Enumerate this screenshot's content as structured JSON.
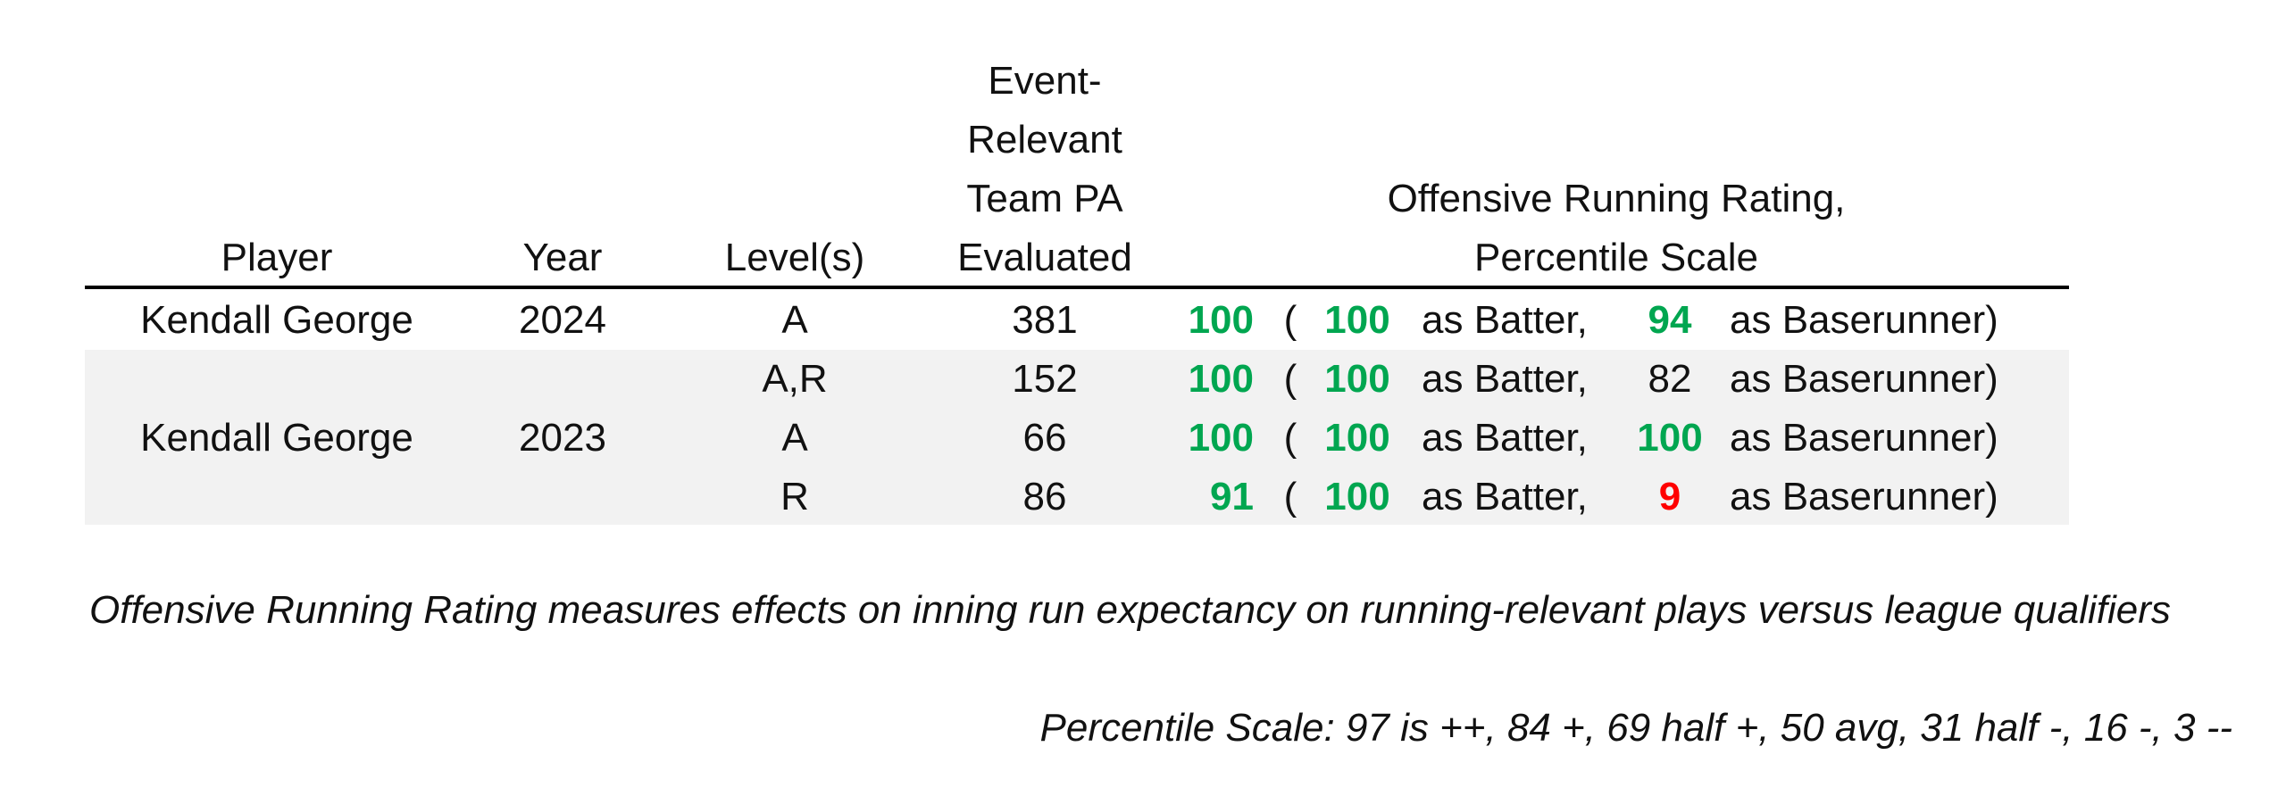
{
  "colors": {
    "high": "#00a650",
    "low": "#ff0000",
    "text": "#111111",
    "band": "#f2f2f2"
  },
  "header": {
    "player": "Player",
    "year": "Year",
    "levels": "Level(s)",
    "pa_lines": [
      "Event-",
      "Relevant",
      "Team PA",
      "Evaluated"
    ],
    "rating_lines": [
      "Offensive Running Rating,",
      "Percentile Scale"
    ]
  },
  "rows": [
    {
      "player": "Kendall George",
      "year": "2024",
      "level": "A",
      "pa": "381",
      "overall": "100",
      "open": "(",
      "batter": "100",
      "batter_label": "as Batter,",
      "runner": "94",
      "runner_label": "as Baserunner)"
    },
    {
      "level": "A,R",
      "pa": "152",
      "overall": "100",
      "open": "(",
      "batter": "100",
      "batter_label": "as Batter,",
      "runner": "82",
      "runner_label": "as Baserunner)"
    },
    {
      "player": "Kendall George",
      "year": "2023",
      "level": "A",
      "pa": "66",
      "overall": "100",
      "open": "(",
      "batter": "100",
      "batter_label": "as Batter,",
      "runner": "100",
      "runner_label": "as Baserunner)"
    },
    {
      "level": "R",
      "pa": "86",
      "overall": "91",
      "open": "(",
      "batter": "100",
      "batter_label": "as Batter,",
      "runner": "9",
      "runner_label": "as Baserunner)"
    }
  ],
  "notes": {
    "definition": "Offensive Running Rating measures effects on inning run expectancy on running-relevant plays versus league qualifiers",
    "scale": "Percentile Scale: 97 is ++, 84 +, 69 half +, 50 avg, 31 half -, 16 -, 3 --"
  }
}
